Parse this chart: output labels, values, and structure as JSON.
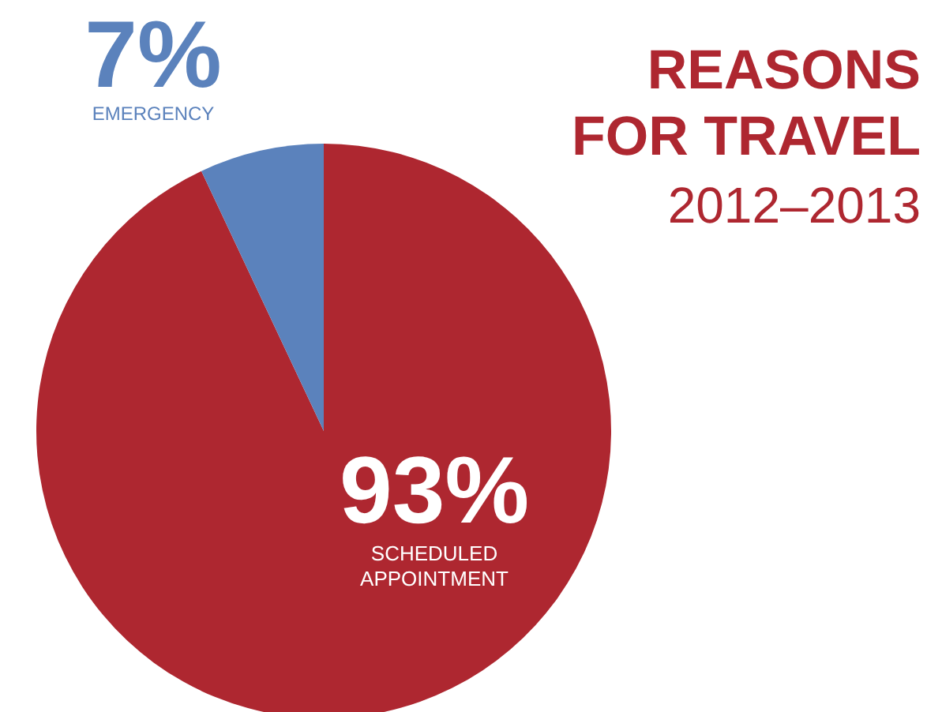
{
  "chart_data": {
    "type": "pie",
    "title": "REASONS FOR TRAVEL",
    "subtitle": "2012–2013",
    "categories": [
      "SCHEDULED APPOINTMENT",
      "EMERGENCY"
    ],
    "values": [
      93,
      7
    ],
    "colors": [
      "#ae2730",
      "#5b82bc"
    ],
    "value_labels": [
      "93%",
      "7%"
    ]
  }
}
